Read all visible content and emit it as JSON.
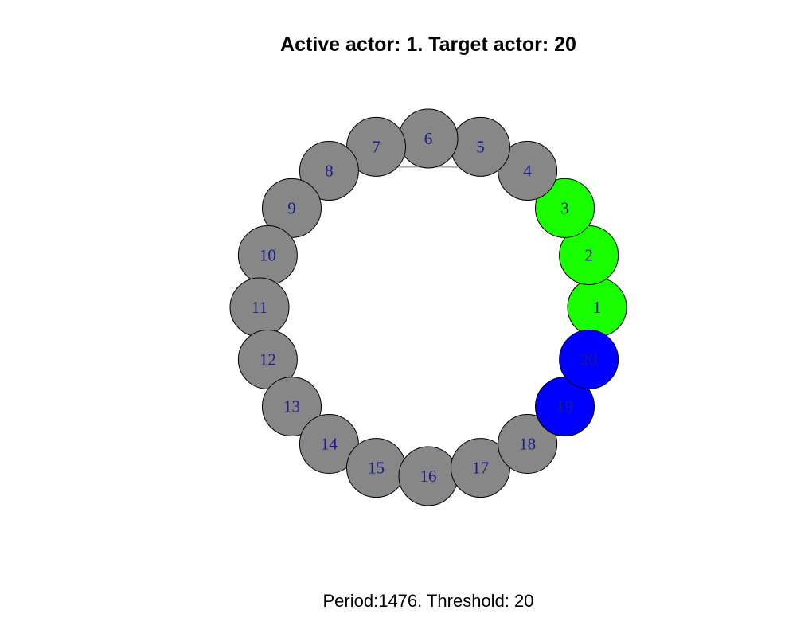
{
  "title": "Active actor: 1. Target actor: 20",
  "subtitle": "Period:1476. Threshold: 20",
  "colors": {
    "gray": "#878787",
    "green": "#1aff00",
    "blue": "#0000ff",
    "edge": "#a0a0a0",
    "stroke": "#000000",
    "label": "#1a1a8a"
  },
  "nodes": [
    {
      "id": "1",
      "status": "green"
    },
    {
      "id": "2",
      "status": "green"
    },
    {
      "id": "3",
      "status": "green"
    },
    {
      "id": "4",
      "status": "gray"
    },
    {
      "id": "5",
      "status": "gray"
    },
    {
      "id": "6",
      "status": "gray"
    },
    {
      "id": "7",
      "status": "gray"
    },
    {
      "id": "8",
      "status": "gray"
    },
    {
      "id": "9",
      "status": "gray"
    },
    {
      "id": "10",
      "status": "gray"
    },
    {
      "id": "11",
      "status": "gray"
    },
    {
      "id": "12",
      "status": "gray"
    },
    {
      "id": "13",
      "status": "gray"
    },
    {
      "id": "14",
      "status": "gray"
    },
    {
      "id": "15",
      "status": "gray"
    },
    {
      "id": "16",
      "status": "gray"
    },
    {
      "id": "17",
      "status": "gray"
    },
    {
      "id": "18",
      "status": "gray"
    },
    {
      "id": "19",
      "status": "blue"
    },
    {
      "id": "20",
      "status": "blue"
    }
  ],
  "edges": [
    {
      "from": "8",
      "to": "4"
    }
  ]
}
